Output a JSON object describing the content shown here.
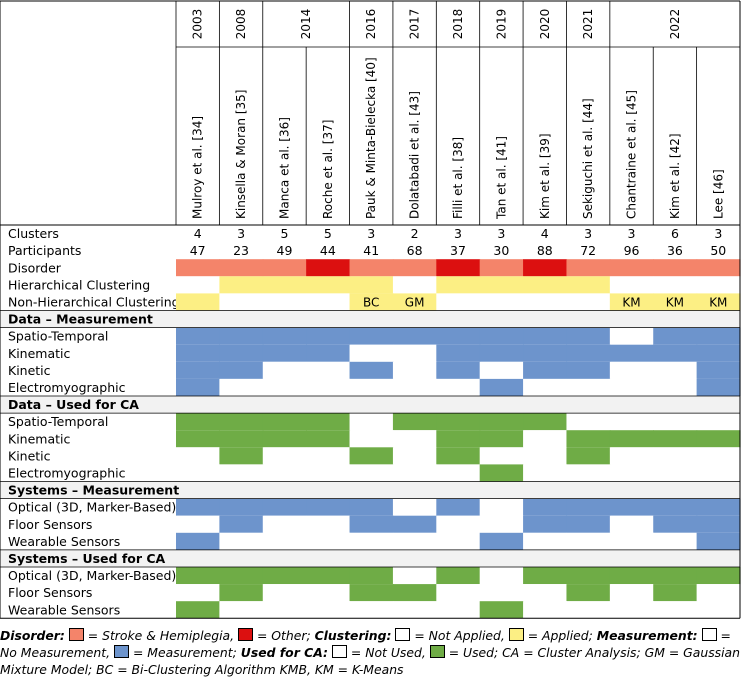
{
  "colors": {
    "stroke": "#f4846a",
    "other": "#dc1010",
    "applied": "#fcef84",
    "measured": "#6d94cc",
    "used": "#6fac46",
    "section": "#f2f2f2",
    "none": "#ffffff"
  },
  "chart_data": {
    "type": "table",
    "years": [
      {
        "label": "2003",
        "span": 1
      },
      {
        "label": "2008",
        "span": 1
      },
      {
        "label": "2014",
        "span": 2
      },
      {
        "label": "2016",
        "span": 1
      },
      {
        "label": "2017",
        "span": 1
      },
      {
        "label": "2018",
        "span": 1
      },
      {
        "label": "2019",
        "span": 1
      },
      {
        "label": "2020",
        "span": 1
      },
      {
        "label": "2021",
        "span": 1
      },
      {
        "label": "2022",
        "span": 3
      }
    ],
    "studies": [
      "Mulroy et al. [34]",
      "Kinsella & Moran [35]",
      "Manca et al. [36]",
      "Roche et al. [37]",
      "Pauk & Minta-Bielecka [40]",
      "Dolatabadi et al. [43]",
      "Filli et al. [38]",
      "Tan et al. [41]",
      "Kim et al. [39]",
      "Sekiguchi et al. [44]",
      "Chantraine et al. [45]",
      "Kim et al. [42]",
      "Lee [46]"
    ],
    "rows": [
      {
        "label": "Clusters",
        "kind": "num",
        "values": [
          "4",
          "3",
          "5",
          "5",
          "3",
          "2",
          "3",
          "3",
          "4",
          "3",
          "3",
          "6",
          "3"
        ]
      },
      {
        "label": "Participants",
        "kind": "num",
        "values": [
          "47",
          "23",
          "49",
          "44",
          "41",
          "68",
          "37",
          "30",
          "88",
          "72",
          "96",
          "36",
          "50"
        ]
      },
      {
        "label": "Disorder",
        "kind": "cells",
        "fills": [
          "stroke",
          "stroke",
          "stroke",
          "other",
          "stroke",
          "stroke",
          "other",
          "stroke",
          "other",
          "stroke",
          "stroke",
          "stroke",
          "stroke"
        ]
      },
      {
        "label": "Hierarchical Clustering",
        "kind": "cells",
        "fills": [
          "none",
          "applied",
          "applied",
          "applied",
          "applied",
          "none",
          "applied",
          "applied",
          "applied",
          "applied",
          "none",
          "none",
          "none"
        ]
      },
      {
        "label": "Non-Hierarchical Clustering",
        "kind": "cells",
        "fills": [
          "applied",
          "none",
          "none",
          "none",
          "applied",
          "applied",
          "none",
          "none",
          "none",
          "none",
          "applied",
          "applied",
          "applied"
        ],
        "texts": [
          "",
          "",
          "",
          "",
          "BC",
          "GM",
          "",
          "",
          "",
          "",
          "KM",
          "KM",
          "KM"
        ]
      },
      {
        "label": "Data – Measurement",
        "kind": "section"
      },
      {
        "label": "Spatio-Temporal",
        "kind": "cells",
        "fills": [
          "measured",
          "measured",
          "measured",
          "measured",
          "measured",
          "measured",
          "measured",
          "measured",
          "measured",
          "measured",
          "none",
          "measured",
          "measured"
        ]
      },
      {
        "label": "Kinematic",
        "kind": "cells",
        "fills": [
          "measured",
          "measured",
          "measured",
          "measured",
          "none",
          "none",
          "measured",
          "measured",
          "measured",
          "measured",
          "measured",
          "measured",
          "measured"
        ]
      },
      {
        "label": "Kinetic",
        "kind": "cells",
        "fills": [
          "measured",
          "measured",
          "none",
          "none",
          "measured",
          "none",
          "measured",
          "none",
          "measured",
          "measured",
          "none",
          "none",
          "measured"
        ]
      },
      {
        "label": "Electromyographic",
        "kind": "cells",
        "fills": [
          "measured",
          "none",
          "none",
          "none",
          "none",
          "none",
          "none",
          "measured",
          "none",
          "none",
          "none",
          "none",
          "measured"
        ]
      },
      {
        "label": "Data – Used for CA",
        "kind": "section"
      },
      {
        "label": "Spatio-Temporal",
        "kind": "cells",
        "fills": [
          "used",
          "used",
          "used",
          "used",
          "none",
          "used",
          "used",
          "used",
          "used",
          "none",
          "none",
          "none",
          "none"
        ]
      },
      {
        "label": "Kinematic",
        "kind": "cells",
        "fills": [
          "used",
          "used",
          "used",
          "used",
          "none",
          "none",
          "used",
          "used",
          "none",
          "used",
          "used",
          "used",
          "used"
        ]
      },
      {
        "label": "Kinetic",
        "kind": "cells",
        "fills": [
          "none",
          "used",
          "none",
          "none",
          "used",
          "none",
          "used",
          "none",
          "none",
          "used",
          "none",
          "none",
          "none"
        ]
      },
      {
        "label": "Electromyographic",
        "kind": "cells",
        "fills": [
          "none",
          "none",
          "none",
          "none",
          "none",
          "none",
          "none",
          "used",
          "none",
          "none",
          "none",
          "none",
          "none"
        ]
      },
      {
        "label": "Systems – Measurement",
        "kind": "section"
      },
      {
        "label": "Optical (3D, Marker-Based)",
        "kind": "cells",
        "fills": [
          "measured",
          "measured",
          "measured",
          "measured",
          "measured",
          "none",
          "measured",
          "none",
          "measured",
          "measured",
          "measured",
          "measured",
          "measured"
        ]
      },
      {
        "label": "Floor Sensors",
        "kind": "cells",
        "fills": [
          "none",
          "measured",
          "none",
          "none",
          "measured",
          "measured",
          "none",
          "none",
          "measured",
          "measured",
          "none",
          "measured",
          "measured"
        ]
      },
      {
        "label": "Wearable Sensors",
        "kind": "cells",
        "fills": [
          "measured",
          "none",
          "none",
          "none",
          "none",
          "none",
          "none",
          "measured",
          "none",
          "none",
          "none",
          "none",
          "measured"
        ]
      },
      {
        "label": "Systems – Used for CA",
        "kind": "section"
      },
      {
        "label": "Optical (3D, Marker-Based)",
        "kind": "cells",
        "fills": [
          "used",
          "used",
          "used",
          "used",
          "used",
          "none",
          "used",
          "none",
          "used",
          "used",
          "used",
          "used",
          "used"
        ]
      },
      {
        "label": "Floor Sensors",
        "kind": "cells",
        "fills": [
          "none",
          "used",
          "none",
          "none",
          "used",
          "used",
          "none",
          "none",
          "none",
          "used",
          "none",
          "used",
          "none"
        ]
      },
      {
        "label": "Wearable Sensors",
        "kind": "cells",
        "fills": [
          "used",
          "none",
          "none",
          "none",
          "none",
          "none",
          "none",
          "used",
          "none",
          "none",
          "none",
          "none",
          "none"
        ]
      }
    ]
  },
  "legend": {
    "disorder_label": "Disorder:",
    "stroke_text": " = Stroke & Hemiplegia,",
    "other_text": " = Other;",
    "clustering_label": "Clustering:",
    "not_applied_text": " = Not Applied,",
    "applied_text": " = Applied;",
    "measurement_label": "Measurement:",
    "no_measurement_text": " = No Measurement,",
    "measurement_text": " = Measurement;",
    "used_label": "Used for CA:",
    "not_used_text": " = Not Used,",
    "used_text": " = Used; CA = Cluster Analysis; GM = Gaussian Mixture Model; BC = Bi-Clustering Algorithm KMB, KM = K-Means"
  }
}
